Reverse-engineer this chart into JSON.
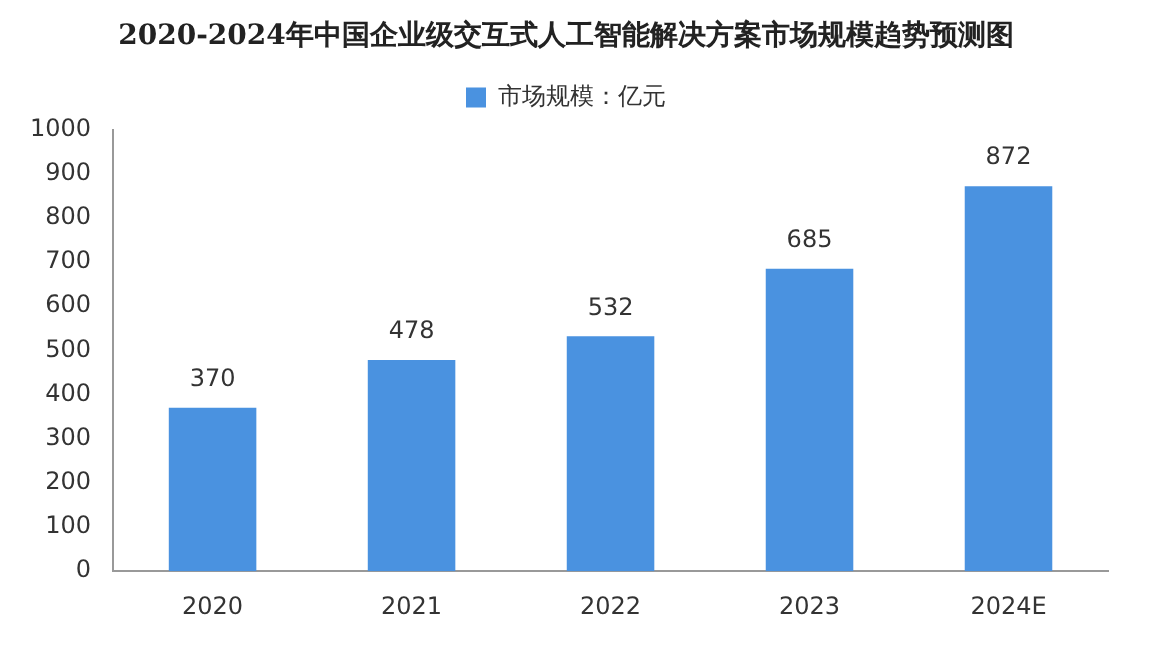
{
  "chart_data": {
    "type": "bar",
    "title": "2020-2024年中国企业级交互式人工智能解决方案市场规模趋势预测图",
    "categories": [
      "2020",
      "2021",
      "2022",
      "2023",
      "2024E"
    ],
    "series": [
      {
        "name": "市场规模：亿元",
        "color": "#4a92e0",
        "values": [
          370,
          478,
          532,
          685,
          872
        ]
      }
    ],
    "ylim": [
      0,
      1000
    ],
    "yticks": [
      0,
      100,
      200,
      300,
      400,
      500,
      600,
      700,
      800,
      900,
      1000
    ],
    "grid": false,
    "legend": "top",
    "data_labels": true
  }
}
